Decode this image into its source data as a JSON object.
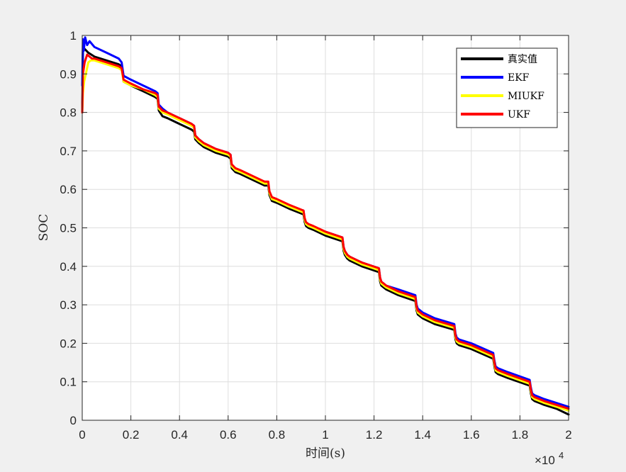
{
  "chart_data": {
    "type": "line",
    "title": "",
    "xlabel": "时间(s)",
    "ylabel": "SOC",
    "x_exponent_label": "×10",
    "x_exponent_power": "4",
    "xlim": [
      0,
      20000
    ],
    "ylim": [
      0,
      1
    ],
    "xticks": [
      0,
      2000,
      4000,
      6000,
      8000,
      10000,
      12000,
      14000,
      16000,
      18000,
      20000
    ],
    "xtick_labels": [
      "0",
      "0.2",
      "0.4",
      "0.6",
      "0.8",
      "1",
      "1.2",
      "1.4",
      "1.6",
      "1.8",
      "2"
    ],
    "yticks": [
      0,
      0.1,
      0.2,
      0.3,
      0.4,
      0.5,
      0.6,
      0.7,
      0.8,
      0.9,
      1
    ],
    "ytick_labels": [
      "0",
      "0.1",
      "0.2",
      "0.3",
      "0.4",
      "0.5",
      "0.6",
      "0.7",
      "0.8",
      "0.9",
      "1"
    ],
    "grid": true,
    "legend_position": "top-right",
    "series": [
      {
        "name": "真实值",
        "color": "#000000",
        "x": [
          0,
          30,
          100,
          250,
          500,
          1000,
          1500,
          1620,
          1700,
          2000,
          2500,
          3000,
          3100,
          3150,
          3300,
          3500,
          4000,
          4500,
          4600,
          4650,
          4800,
          5000,
          5500,
          6000,
          6100,
          6150,
          6300,
          6500,
          7000,
          7500,
          7650,
          7700,
          7800,
          8000,
          8500,
          9100,
          9150,
          9200,
          9300,
          9500,
          10000,
          10700,
          10750,
          10800,
          10900,
          11000,
          11500,
          12200,
          12250,
          12300,
          12400,
          12500,
          13000,
          13700,
          13750,
          13800,
          13900,
          14000,
          14500,
          15300,
          15350,
          15400,
          15500,
          16000,
          16900,
          16950,
          17000,
          17100,
          17500,
          18400,
          18450,
          18500,
          18600,
          19000,
          19500,
          20000
        ],
        "y": [
          0.8,
          0.96,
          0.965,
          0.955,
          0.945,
          0.935,
          0.925,
          0.92,
          0.88,
          0.87,
          0.855,
          0.84,
          0.835,
          0.805,
          0.79,
          0.785,
          0.77,
          0.755,
          0.75,
          0.73,
          0.72,
          0.71,
          0.695,
          0.685,
          0.68,
          0.655,
          0.645,
          0.64,
          0.625,
          0.61,
          0.61,
          0.585,
          0.57,
          0.565,
          0.55,
          0.535,
          0.515,
          0.505,
          0.5,
          0.495,
          0.48,
          0.465,
          0.44,
          0.43,
          0.42,
          0.415,
          0.4,
          0.385,
          0.36,
          0.35,
          0.345,
          0.34,
          0.325,
          0.31,
          0.285,
          0.275,
          0.27,
          0.265,
          0.25,
          0.235,
          0.21,
          0.2,
          0.195,
          0.185,
          0.16,
          0.14,
          0.125,
          0.12,
          0.11,
          0.09,
          0.07,
          0.055,
          0.05,
          0.04,
          0.03,
          0.015
        ]
      },
      {
        "name": "EKF",
        "color": "#0000ff",
        "x": [
          0,
          30,
          60,
          120,
          200,
          300,
          500,
          1000,
          1500,
          1620,
          1700,
          2000,
          2500,
          3000,
          3100,
          3150,
          3300,
          3500,
          4000,
          4500,
          4600,
          4650,
          4800,
          5000,
          5500,
          6000,
          6100,
          6150,
          6300,
          6500,
          7000,
          7500,
          7650,
          7700,
          7800,
          8000,
          8500,
          9100,
          9150,
          9200,
          9300,
          9500,
          10000,
          10700,
          10750,
          10800,
          10900,
          11000,
          11500,
          12200,
          12250,
          12300,
          12400,
          12500,
          13000,
          13700,
          13750,
          13800,
          13900,
          14000,
          14500,
          15300,
          15350,
          15400,
          15500,
          16000,
          16900,
          16950,
          17000,
          17100,
          17500,
          18400,
          18450,
          18500,
          18600,
          19000,
          19500,
          20000
        ],
        "y": [
          0.87,
          0.99,
          0.96,
          0.995,
          0.975,
          0.985,
          0.97,
          0.955,
          0.94,
          0.93,
          0.895,
          0.885,
          0.87,
          0.855,
          0.85,
          0.82,
          0.81,
          0.8,
          0.785,
          0.77,
          0.765,
          0.74,
          0.73,
          0.72,
          0.705,
          0.695,
          0.69,
          0.66,
          0.65,
          0.645,
          0.63,
          0.62,
          0.615,
          0.59,
          0.58,
          0.57,
          0.555,
          0.545,
          0.52,
          0.51,
          0.505,
          0.5,
          0.49,
          0.475,
          0.45,
          0.44,
          0.43,
          0.425,
          0.41,
          0.395,
          0.37,
          0.36,
          0.355,
          0.35,
          0.34,
          0.325,
          0.3,
          0.29,
          0.285,
          0.28,
          0.265,
          0.25,
          0.225,
          0.215,
          0.21,
          0.2,
          0.175,
          0.155,
          0.14,
          0.135,
          0.125,
          0.105,
          0.085,
          0.07,
          0.065,
          0.055,
          0.045,
          0.035
        ]
      },
      {
        "name": "MIUKF",
        "color": "#ffff00",
        "x": [
          0,
          30,
          80,
          150,
          250,
          350,
          500,
          1000,
          1500,
          1620,
          1700,
          2000,
          2500,
          3000,
          3100,
          3150,
          3300,
          3500,
          4000,
          4500,
          4600,
          4650,
          4800,
          5000,
          5500,
          6000,
          6100,
          6150,
          6300,
          6500,
          7000,
          7500,
          7650,
          7700,
          7800,
          8000,
          8500,
          9100,
          9150,
          9200,
          9300,
          9500,
          10000,
          10700,
          10750,
          10800,
          10900,
          11000,
          11500,
          12200,
          12250,
          12300,
          12400,
          12500,
          13000,
          13700,
          13750,
          13800,
          13900,
          14000,
          14500,
          15300,
          15350,
          15400,
          15500,
          16000,
          16900,
          16950,
          17000,
          17100,
          17500,
          18400,
          18450,
          18500,
          18600,
          19000,
          19500,
          20000
        ],
        "y": [
          0.8,
          0.85,
          0.88,
          0.9,
          0.93,
          0.935,
          0.935,
          0.925,
          0.915,
          0.91,
          0.88,
          0.87,
          0.86,
          0.845,
          0.84,
          0.81,
          0.8,
          0.795,
          0.78,
          0.765,
          0.76,
          0.735,
          0.725,
          0.715,
          0.7,
          0.69,
          0.685,
          0.66,
          0.65,
          0.645,
          0.63,
          0.615,
          0.615,
          0.59,
          0.575,
          0.57,
          0.555,
          0.54,
          0.52,
          0.51,
          0.505,
          0.5,
          0.485,
          0.47,
          0.445,
          0.435,
          0.425,
          0.42,
          0.405,
          0.39,
          0.365,
          0.355,
          0.35,
          0.345,
          0.33,
          0.315,
          0.29,
          0.28,
          0.275,
          0.27,
          0.255,
          0.24,
          0.215,
          0.205,
          0.2,
          0.19,
          0.165,
          0.145,
          0.13,
          0.125,
          0.115,
          0.095,
          0.075,
          0.06,
          0.055,
          0.045,
          0.035,
          0.025
        ]
      },
      {
        "name": "UKF",
        "color": "#ff0000",
        "x": [
          0,
          30,
          100,
          200,
          300,
          400,
          500,
          1000,
          1500,
          1620,
          1700,
          2000,
          2500,
          3000,
          3100,
          3150,
          3300,
          3500,
          4000,
          4500,
          4600,
          4650,
          4800,
          5000,
          5500,
          6000,
          6100,
          6150,
          6300,
          6500,
          7000,
          7500,
          7650,
          7700,
          7800,
          8000,
          8500,
          9100,
          9150,
          9200,
          9300,
          9500,
          10000,
          10700,
          10750,
          10800,
          10900,
          11000,
          11500,
          12200,
          12250,
          12300,
          12400,
          12500,
          13000,
          13700,
          13750,
          13800,
          13900,
          14000,
          14500,
          15300,
          15350,
          15400,
          15500,
          16000,
          16900,
          16950,
          17000,
          17100,
          17500,
          18400,
          18450,
          18500,
          18600,
          19000,
          19500,
          20000
        ],
        "y": [
          0.8,
          0.9,
          0.93,
          0.95,
          0.945,
          0.94,
          0.94,
          0.93,
          0.92,
          0.915,
          0.885,
          0.875,
          0.86,
          0.85,
          0.845,
          0.815,
          0.805,
          0.8,
          0.785,
          0.77,
          0.765,
          0.74,
          0.73,
          0.72,
          0.705,
          0.695,
          0.69,
          0.665,
          0.655,
          0.65,
          0.635,
          0.62,
          0.62,
          0.595,
          0.58,
          0.575,
          0.56,
          0.545,
          0.525,
          0.515,
          0.51,
          0.505,
          0.49,
          0.475,
          0.45,
          0.44,
          0.43,
          0.425,
          0.41,
          0.395,
          0.37,
          0.36,
          0.355,
          0.35,
          0.335,
          0.32,
          0.295,
          0.285,
          0.28,
          0.275,
          0.26,
          0.245,
          0.22,
          0.21,
          0.205,
          0.195,
          0.17,
          0.15,
          0.135,
          0.13,
          0.12,
          0.1,
          0.08,
          0.065,
          0.06,
          0.05,
          0.04,
          0.03
        ]
      }
    ]
  }
}
